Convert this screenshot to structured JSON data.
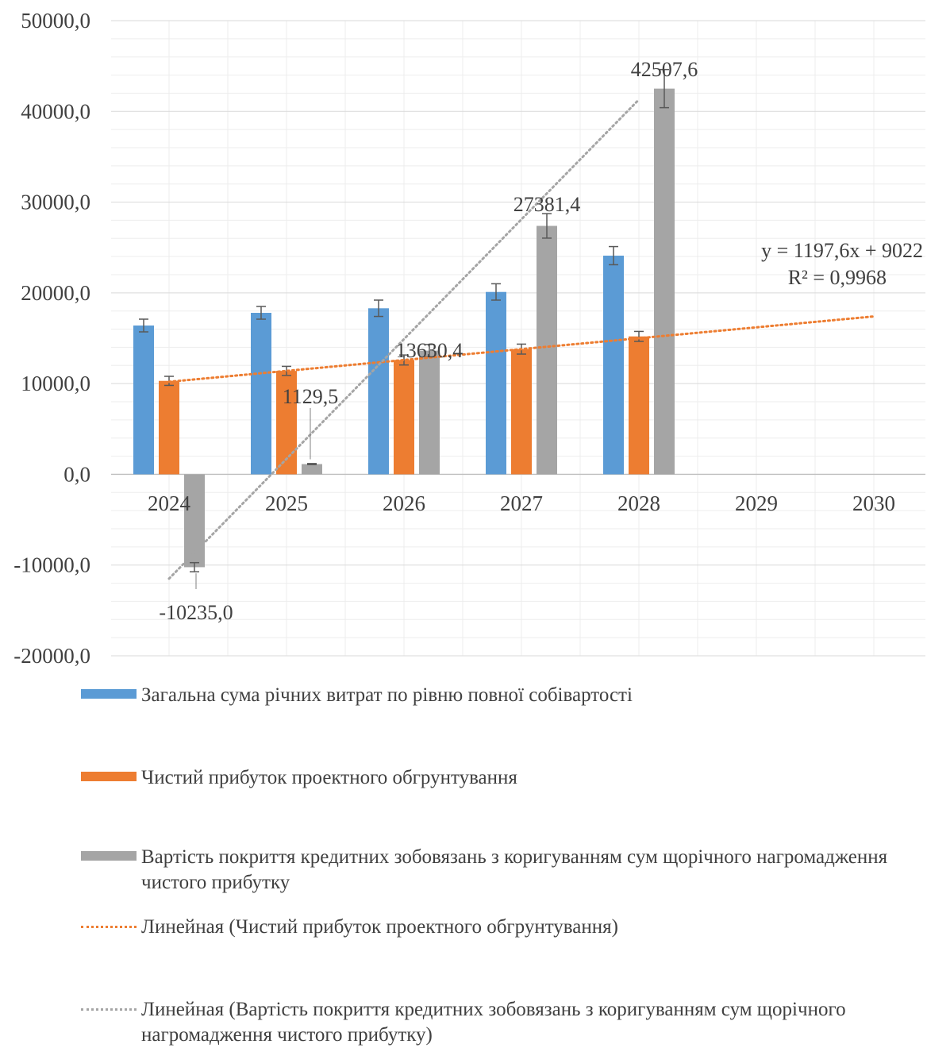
{
  "chart_data": {
    "type": "bar",
    "categories": [
      "2024",
      "2025",
      "2026",
      "2027",
      "2028",
      "2029",
      "2030"
    ],
    "ylim": [
      -20000,
      50000
    ],
    "y_ticks": [
      "-20000,0",
      "-10000,0",
      "0,0",
      "10000,0",
      "20000,0",
      "30000,0",
      "40000,0",
      "50000,0"
    ],
    "grid": true,
    "legend_position": "bottom",
    "error_bars": true,
    "series": [
      {
        "name": "Загальна сума річних витрат по рівню повної собівартості",
        "color": "#5B9BD5",
        "values": [
          16400,
          17800,
          18300,
          20100,
          24100,
          null,
          null
        ],
        "errors": [
          700,
          700,
          900,
          900,
          1000,
          null,
          null
        ]
      },
      {
        "name": "Чистий прибуток проектного обгрунтування",
        "color": "#ED7D31",
        "values": [
          10300,
          11400,
          12600,
          13800,
          15200,
          null,
          null
        ],
        "errors": [
          500,
          500,
          550,
          550,
          550,
          null,
          null
        ]
      },
      {
        "name": "Вартість покриття кредитних зобовязань з коригуванням сум щорічного нагромадження чистого прибутку",
        "color": "#A5A5A5",
        "values": [
          -10235.0,
          1129.5,
          13630.4,
          27381.4,
          42507.6,
          null,
          null
        ],
        "errors": [
          500,
          60,
          680,
          1350,
          2100,
          null,
          null
        ],
        "data_labels": [
          "-10235,0",
          "1129,5",
          "13630,4",
          "27381,4",
          "42507,6"
        ]
      }
    ],
    "trendlines": [
      {
        "name": "Линейная (Чистий прибуток проектного обгрунтування)",
        "color": "#ED7D31",
        "from_category": 0,
        "to_category": 6,
        "y_start": 10200,
        "y_end": 17400,
        "equation": "y = 1197,6x + 9022",
        "r_squared": "R² = 0,9968"
      },
      {
        "name": "Линейная (Вартість покриття кредитних зобовязань з коригуванням сум щорічного нагромадження чистого прибутку)",
        "color": "#A5A5A5",
        "from_category": 0,
        "to_category": 4,
        "y_start": -11500,
        "y_end": 41300
      }
    ]
  }
}
